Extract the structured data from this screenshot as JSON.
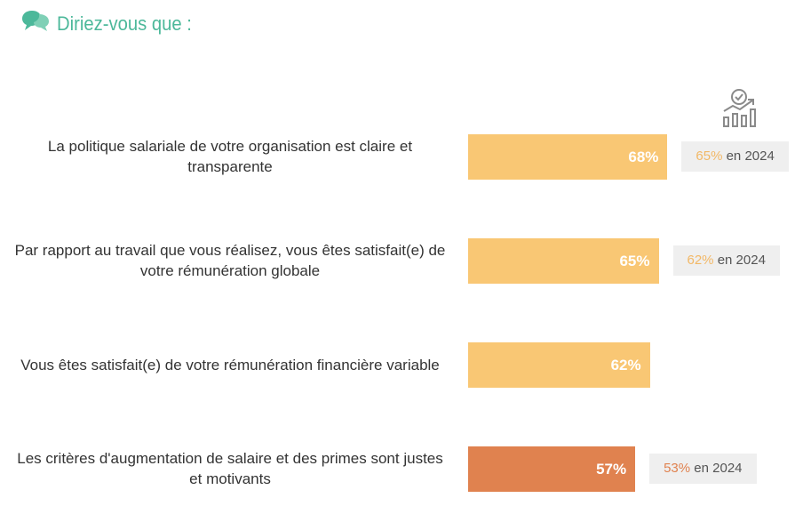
{
  "header": {
    "title": "Diriez-vous que :",
    "icon": "speech-bubbles-icon"
  },
  "trend_icon": "growth-chart-icon",
  "colors": {
    "accent": "#4cb89a",
    "bar_default": "#f9c774",
    "bar_highlight": "#e0824f",
    "compare_bg": "#efefef"
  },
  "chart_data": {
    "type": "bar",
    "orientation": "horizontal",
    "xlim": [
      0,
      100
    ],
    "categories": [
      "La politique salariale de votre organisation est claire et transparente",
      "Par rapport au travail que vous réalisez, vous êtes satisfait(e) de votre rémunération globale",
      "Vous êtes satisfait(e) de votre rémunération financière variable",
      "Les critères d'augmentation de salaire et des primes sont justes et motivants"
    ],
    "rows": [
      {
        "label_lines": [
          "La politique salariale de votre organisation est claire et",
          "transparente"
        ],
        "value": 68,
        "value_label": "68%",
        "highlight": false,
        "comparison": {
          "value_label": "65%",
          "suffix": "en 2024"
        }
      },
      {
        "label_lines": [
          "Par rapport au travail que vous réalisez, vous êtes satisfait(e) de",
          "votre rémunération globale"
        ],
        "value": 65,
        "value_label": "65%",
        "highlight": false,
        "comparison": {
          "value_label": "62%",
          "suffix": "en 2024"
        }
      },
      {
        "label_lines": [
          "Vous êtes satisfait(e) de votre rémunération financière variable"
        ],
        "value": 62,
        "value_label": "62%",
        "highlight": false,
        "comparison": null
      },
      {
        "label_lines": [
          "Les critères d'augmentation de salaire et des primes sont justes",
          "et motivants"
        ],
        "value": 57,
        "value_label": "57%",
        "highlight": true,
        "comparison": {
          "value_label": "53%",
          "suffix": "en 2024"
        }
      }
    ]
  }
}
